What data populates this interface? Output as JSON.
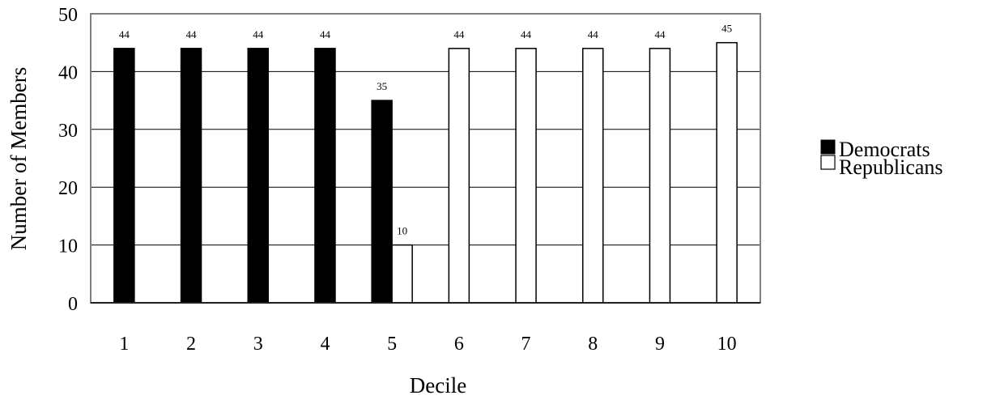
{
  "chart_data": {
    "type": "bar",
    "title": "",
    "xlabel": "Decile",
    "ylabel": "Number of Members",
    "categories": [
      "1",
      "2",
      "3",
      "4",
      "5",
      "6",
      "7",
      "8",
      "9",
      "10"
    ],
    "series": [
      {
        "name": "Democrats",
        "color": "#000000",
        "values": [
          44,
          44,
          44,
          44,
          35,
          null,
          null,
          null,
          null,
          null
        ],
        "data_labels": [
          "44",
          "44",
          "44",
          "44",
          "35",
          "",
          "",
          "",
          "",
          ""
        ]
      },
      {
        "name": "Republicans",
        "color": "#ffffff",
        "values": [
          null,
          null,
          null,
          null,
          10,
          44,
          44,
          44,
          44,
          45
        ],
        "data_labels": [
          "",
          "",
          "",
          "",
          "10",
          "44",
          "44",
          "44",
          "44",
          "45"
        ]
      }
    ],
    "ylim": [
      0,
      50
    ],
    "yticks": [
      "0",
      "10",
      "20",
      "30",
      "40",
      "50"
    ],
    "grid": true,
    "legend_position": "right"
  }
}
